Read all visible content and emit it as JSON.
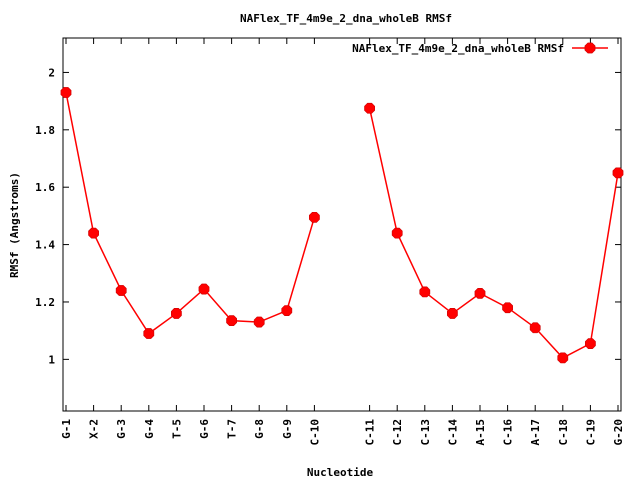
{
  "chart_data": {
    "type": "line",
    "title": "NAFlex_TF_4m9e_2_dna_wholeB RMSf",
    "xlabel": "Nucleotide",
    "ylabel": "RMSf (Angstroms)",
    "ylim": [
      0.82,
      2.12
    ],
    "yticks": [
      "1",
      "1.2",
      "1.4",
      "1.6",
      "1.8",
      "2"
    ],
    "ytick_values": [
      1,
      1.2,
      1.4,
      1.6,
      1.8,
      2
    ],
    "grid": false,
    "legend_position": "top-right",
    "categories": [
      "G-1",
      "X-2",
      "G-3",
      "G-4",
      "T-5",
      "G-6",
      "T-7",
      "G-8",
      "G-9",
      "C-10",
      "C-11",
      "C-12",
      "C-13",
      "C-14",
      "A-15",
      "C-16",
      "A-17",
      "C-18",
      "C-19",
      "G-20"
    ],
    "x": [
      1,
      2,
      3,
      4,
      5,
      6,
      7,
      8,
      9,
      10,
      12,
      13,
      14,
      15,
      16,
      17,
      18,
      19,
      20,
      21
    ],
    "xlim": [
      1,
      21
    ],
    "series": [
      {
        "name": "NAFlex_TF_4m9e_2_dna_wholeB RMSf",
        "color": "#ff0000",
        "segments": [
          {
            "x": [
              1,
              2,
              3,
              4,
              5,
              6,
              7,
              8,
              9,
              10
            ],
            "values": [
              1.93,
              1.44,
              1.24,
              1.09,
              1.16,
              1.245,
              1.135,
              1.13,
              1.17,
              1.495
            ]
          },
          {
            "x": [
              12,
              13,
              14,
              15,
              16,
              17,
              18,
              19,
              20,
              21
            ],
            "values": [
              1.875,
              1.44,
              1.235,
              1.16,
              1.23,
              1.18,
              1.11,
              1.005,
              1.055,
              1.65
            ]
          }
        ]
      }
    ]
  }
}
